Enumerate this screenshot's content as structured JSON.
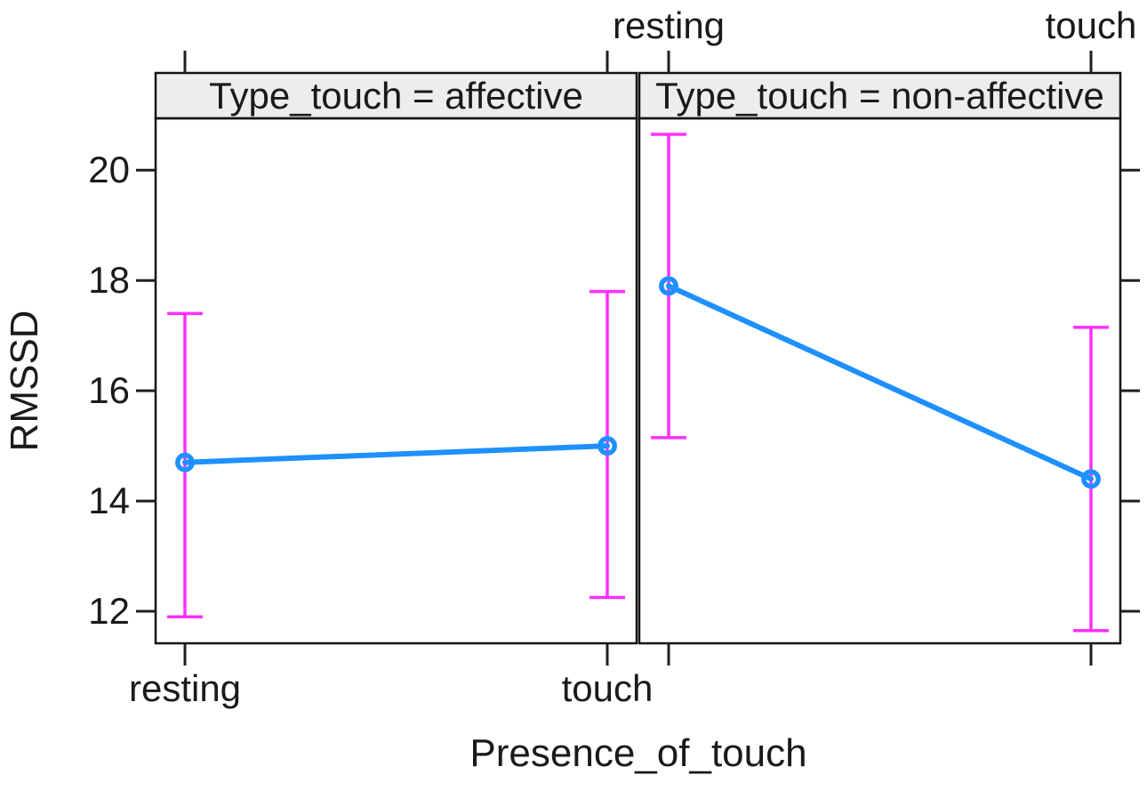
{
  "chart_data": {
    "type": "line",
    "title": "",
    "xlabel": "Presence_of_touch",
    "ylabel": "RMSSD",
    "categories": [
      "resting",
      "touch"
    ],
    "panels": [
      {
        "strip_label": "Type_touch = affective",
        "means": [
          14.7,
          15.0
        ],
        "ci_low": [
          11.9,
          12.25
        ],
        "ci_high": [
          17.4,
          17.8
        ]
      },
      {
        "strip_label": "Type_touch = non-affective",
        "means": [
          17.9,
          14.4
        ],
        "ci_low": [
          15.15,
          11.65
        ],
        "ci_high": [
          20.65,
          17.15
        ]
      }
    ],
    "y_ticks": [
      12,
      14,
      16,
      18,
      20
    ],
    "ylim": [
      11.42,
      20.94
    ],
    "grid": "off",
    "legend": "none",
    "axis_layout": {
      "bottom_labels_panel": "affective",
      "top_labels_panel": "non-affective"
    },
    "colors": {
      "line": "#1E90FF",
      "error_bar": "#FF30FF",
      "strip_bg": "#EDEDED",
      "border": "#141414",
      "tick": "#1F1F1F",
      "text": "#1A1A1A"
    }
  }
}
